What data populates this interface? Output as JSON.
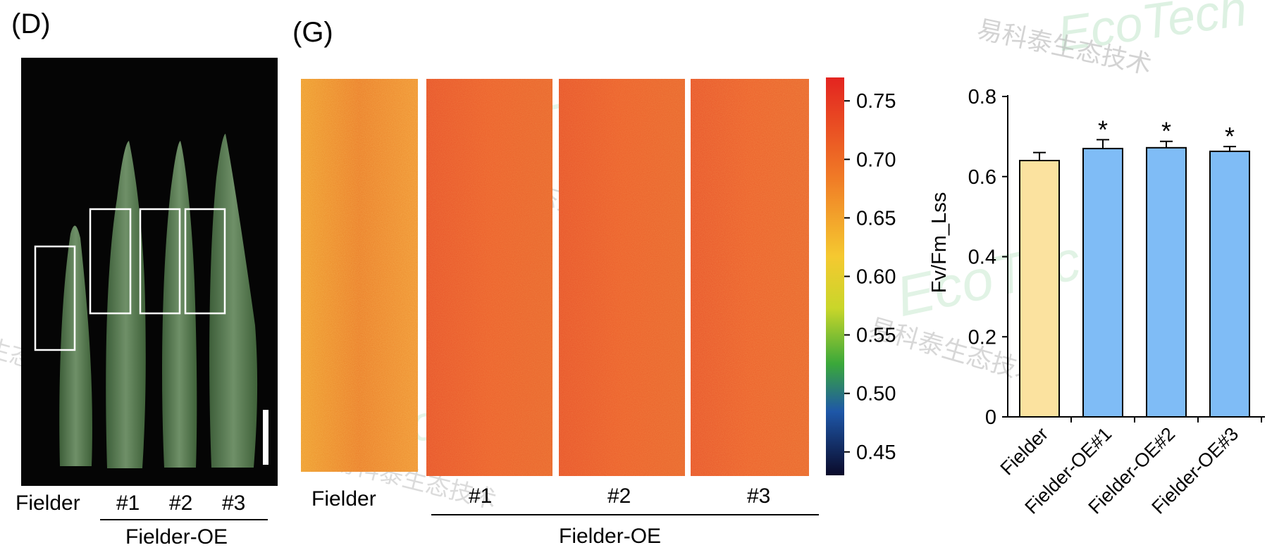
{
  "panel_d": {
    "label": "(D)",
    "labels": {
      "fielder": "Fielder",
      "oe1": "#1",
      "oe2": "#2",
      "oe3": "#3",
      "group": "Fielder-OE"
    }
  },
  "panel_g": {
    "label": "(G)",
    "labels": {
      "fielder": "Fielder",
      "oe1": "#1",
      "oe2": "#2",
      "oe3": "#3",
      "group": "Fielder-OE"
    },
    "colorbar": {
      "ticks": [
        "0.75",
        "0.70",
        "0.65",
        "0.60",
        "0.55",
        "0.50",
        "0.45"
      ]
    }
  },
  "chart_data": {
    "type": "bar",
    "categories": [
      "Fielder",
      "Fielder-OE#1",
      "Fielder-OE#2",
      "Fielder-OE#3"
    ],
    "values": [
      0.64,
      0.67,
      0.672,
      0.663
    ],
    "errors": [
      0.02,
      0.022,
      0.016,
      0.012
    ],
    "significance": [
      "",
      "*",
      "*",
      "*"
    ],
    "ylabel": "Fv/Fm_Lss",
    "ylim": [
      0,
      0.8
    ],
    "yticks": [
      "0",
      "0.2",
      "0.4",
      "0.6",
      "0.8"
    ],
    "colors": [
      "#fbe29f",
      "#7fbcf6"
    ]
  },
  "watermarks": {
    "chinese": "易科泰生态技术",
    "latin": "EcoTech"
  }
}
